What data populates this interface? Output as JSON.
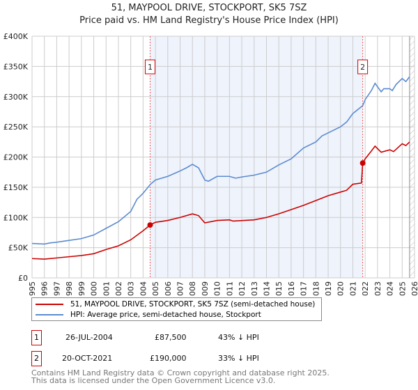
{
  "title": "51, MAYPOOL DRIVE, STOCKPORT, SK5 7SZ",
  "subtitle": "Price paid vs. HM Land Registry's House Price Index (HPI)",
  "chart_data": {
    "type": "line",
    "xlim": [
      1995,
      2026
    ],
    "ylim": [
      0,
      400000
    ],
    "yticks": [
      {
        "v": 0,
        "label": "£0"
      },
      {
        "v": 50000,
        "label": "£50K"
      },
      {
        "v": 100000,
        "label": "£100K"
      },
      {
        "v": 150000,
        "label": "£150K"
      },
      {
        "v": 200000,
        "label": "£200K"
      },
      {
        "v": 250000,
        "label": "£250K"
      },
      {
        "v": 300000,
        "label": "£300K"
      },
      {
        "v": 350000,
        "label": "£350K"
      },
      {
        "v": 400000,
        "label": "£400K"
      }
    ],
    "xticks": [
      "1995",
      "1996",
      "1997",
      "1998",
      "1999",
      "2000",
      "2001",
      "2002",
      "2003",
      "2004",
      "2005",
      "2006",
      "2007",
      "2008",
      "2009",
      "2010",
      "2011",
      "2012",
      "2013",
      "2014",
      "2015",
      "2016",
      "2017",
      "2018",
      "2019",
      "2020",
      "2021",
      "2022",
      "2023",
      "2024",
      "2025",
      "2026"
    ],
    "series": [
      {
        "name": "51, MAYPOOL DRIVE, STOCKPORT, SK5 7SZ (semi-detached house)",
        "color": "#cc0000",
        "x": [
          1995,
          1996,
          1997,
          1998,
          1999,
          2000,
          2001,
          2002,
          2003,
          2004,
          2004.57,
          2005,
          2006,
          2007,
          2008,
          2008.5,
          2009,
          2010,
          2011,
          2011.3,
          2013,
          2014,
          2015,
          2016,
          2017,
          2018,
          2019,
          2020,
          2020.5,
          2021,
          2021.7,
          2021.8,
          2022,
          2022.5,
          2022.8,
          2023.3,
          2024,
          2024.3,
          2025,
          2025.3,
          2025.6
        ],
        "y": [
          32000,
          31000,
          33000,
          35000,
          37000,
          40000,
          47000,
          53000,
          63000,
          78000,
          87500,
          92000,
          95000,
          100000,
          106000,
          103000,
          91000,
          95000,
          96000,
          94000,
          96000,
          100000,
          106000,
          113000,
          120000,
          128000,
          136000,
          142000,
          145000,
          155000,
          157000,
          190000,
          197000,
          210000,
          218000,
          208000,
          212000,
          209000,
          222000,
          219000,
          225000
        ]
      },
      {
        "name": "HPI: Average price, semi-detached house, Stockport",
        "color": "#5b8bd0",
        "x": [
          1995,
          1996,
          1996.5,
          1997,
          1998,
          1999,
          2000,
          2001,
          2002,
          2003,
          2003.5,
          2004,
          2004.6,
          2005,
          2005.5,
          2006,
          2007,
          2007.5,
          2008,
          2008.5,
          2009,
          2009.3,
          2010,
          2011,
          2011.5,
          2012,
          2013,
          2014,
          2015,
          2016,
          2017,
          2018,
          2018.5,
          2019,
          2020,
          2020.5,
          2021,
          2021.8,
          2022,
          2022.5,
          2022.8,
          2023.3,
          2023.5,
          2024,
          2024.2,
          2024.5,
          2025,
          2025.3,
          2025.6
        ],
        "y": [
          57000,
          56000,
          58000,
          59000,
          62000,
          65000,
          71000,
          82000,
          93000,
          110000,
          130000,
          140000,
          155000,
          162000,
          165000,
          168000,
          177000,
          182000,
          188000,
          182000,
          162000,
          160000,
          168000,
          168000,
          165000,
          167000,
          170000,
          175000,
          187000,
          197000,
          215000,
          225000,
          235000,
          240000,
          250000,
          258000,
          272000,
          285000,
          295000,
          310000,
          322000,
          308000,
          313000,
          313000,
          310000,
          320000,
          330000,
          325000,
          333000
        ]
      }
    ],
    "sales": [
      {
        "n": "1",
        "date": "26-JUL-2004",
        "x": 2004.57,
        "price": 87500,
        "price_label": "£87,500",
        "hpi": "43% ↓ HPI"
      },
      {
        "n": "2",
        "date": "20-OCT-2021",
        "x": 2021.8,
        "price": 190000,
        "price_label": "£190,000",
        "hpi": "33% ↓ HPI"
      }
    ],
    "data_end": 2025.6
  },
  "footer": [
    "Contains HM Land Registry data © Crown copyright and database right 2025.",
    "This data is licensed under the Open Government Licence v3.0."
  ]
}
